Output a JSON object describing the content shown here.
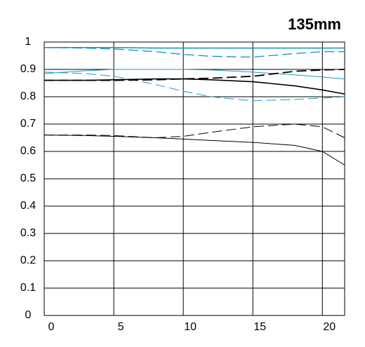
{
  "chart_data": {
    "type": "line",
    "title": "135mm",
    "x": [
      0,
      3,
      5,
      8,
      10,
      12,
      15,
      18,
      20,
      21.6
    ],
    "xlim": [
      0,
      21.6
    ],
    "xticks": [
      0,
      5,
      10,
      15,
      20
    ],
    "ylim": [
      0,
      1
    ],
    "yticks": [
      0,
      0.1,
      0.2,
      0.3,
      0.4,
      0.5,
      0.6,
      0.7,
      0.8,
      0.9,
      1
    ],
    "grid": true,
    "series": [
      {
        "color": "#1a9ac4",
        "linewidth": 1.6,
        "dashed": false,
        "values": [
          0.98,
          0.98,
          0.98,
          0.978,
          0.978,
          0.978,
          0.978,
          0.978,
          0.978,
          0.978
        ]
      },
      {
        "color": "#1a9ac4",
        "linewidth": 1.4,
        "dashed": true,
        "values": [
          0.98,
          0.978,
          0.975,
          0.965,
          0.955,
          0.948,
          0.945,
          0.958,
          0.965,
          0.965
        ]
      },
      {
        "color": "#1a9ac4",
        "linewidth": 1,
        "dashed": false,
        "values": [
          0.885,
          0.895,
          0.9,
          0.9,
          0.9,
          0.898,
          0.89,
          0.88,
          0.872,
          0.865
        ]
      },
      {
        "color": "#1a9ac4",
        "linewidth": 1,
        "dashed": true,
        "values": [
          0.89,
          0.885,
          0.875,
          0.845,
          0.82,
          0.8,
          0.785,
          0.79,
          0.795,
          0.8
        ]
      },
      {
        "color": "#000000",
        "linewidth": 1.8,
        "dashed": true,
        "values": [
          0.86,
          0.86,
          0.86,
          0.862,
          0.865,
          0.868,
          0.875,
          0.893,
          0.898,
          0.9
        ]
      },
      {
        "color": "#000000",
        "linewidth": 1.6,
        "dashed": false,
        "values": [
          0.86,
          0.86,
          0.862,
          0.865,
          0.865,
          0.862,
          0.855,
          0.84,
          0.825,
          0.81
        ]
      },
      {
        "color": "#000000",
        "linewidth": 1,
        "dashed": true,
        "values": [
          0.66,
          0.66,
          0.658,
          0.65,
          0.655,
          0.67,
          0.69,
          0.7,
          0.69,
          0.65
        ]
      },
      {
        "color": "#000000",
        "linewidth": 1,
        "dashed": false,
        "values": [
          0.66,
          0.658,
          0.655,
          0.65,
          0.645,
          0.64,
          0.633,
          0.622,
          0.6,
          0.55
        ]
      }
    ]
  }
}
